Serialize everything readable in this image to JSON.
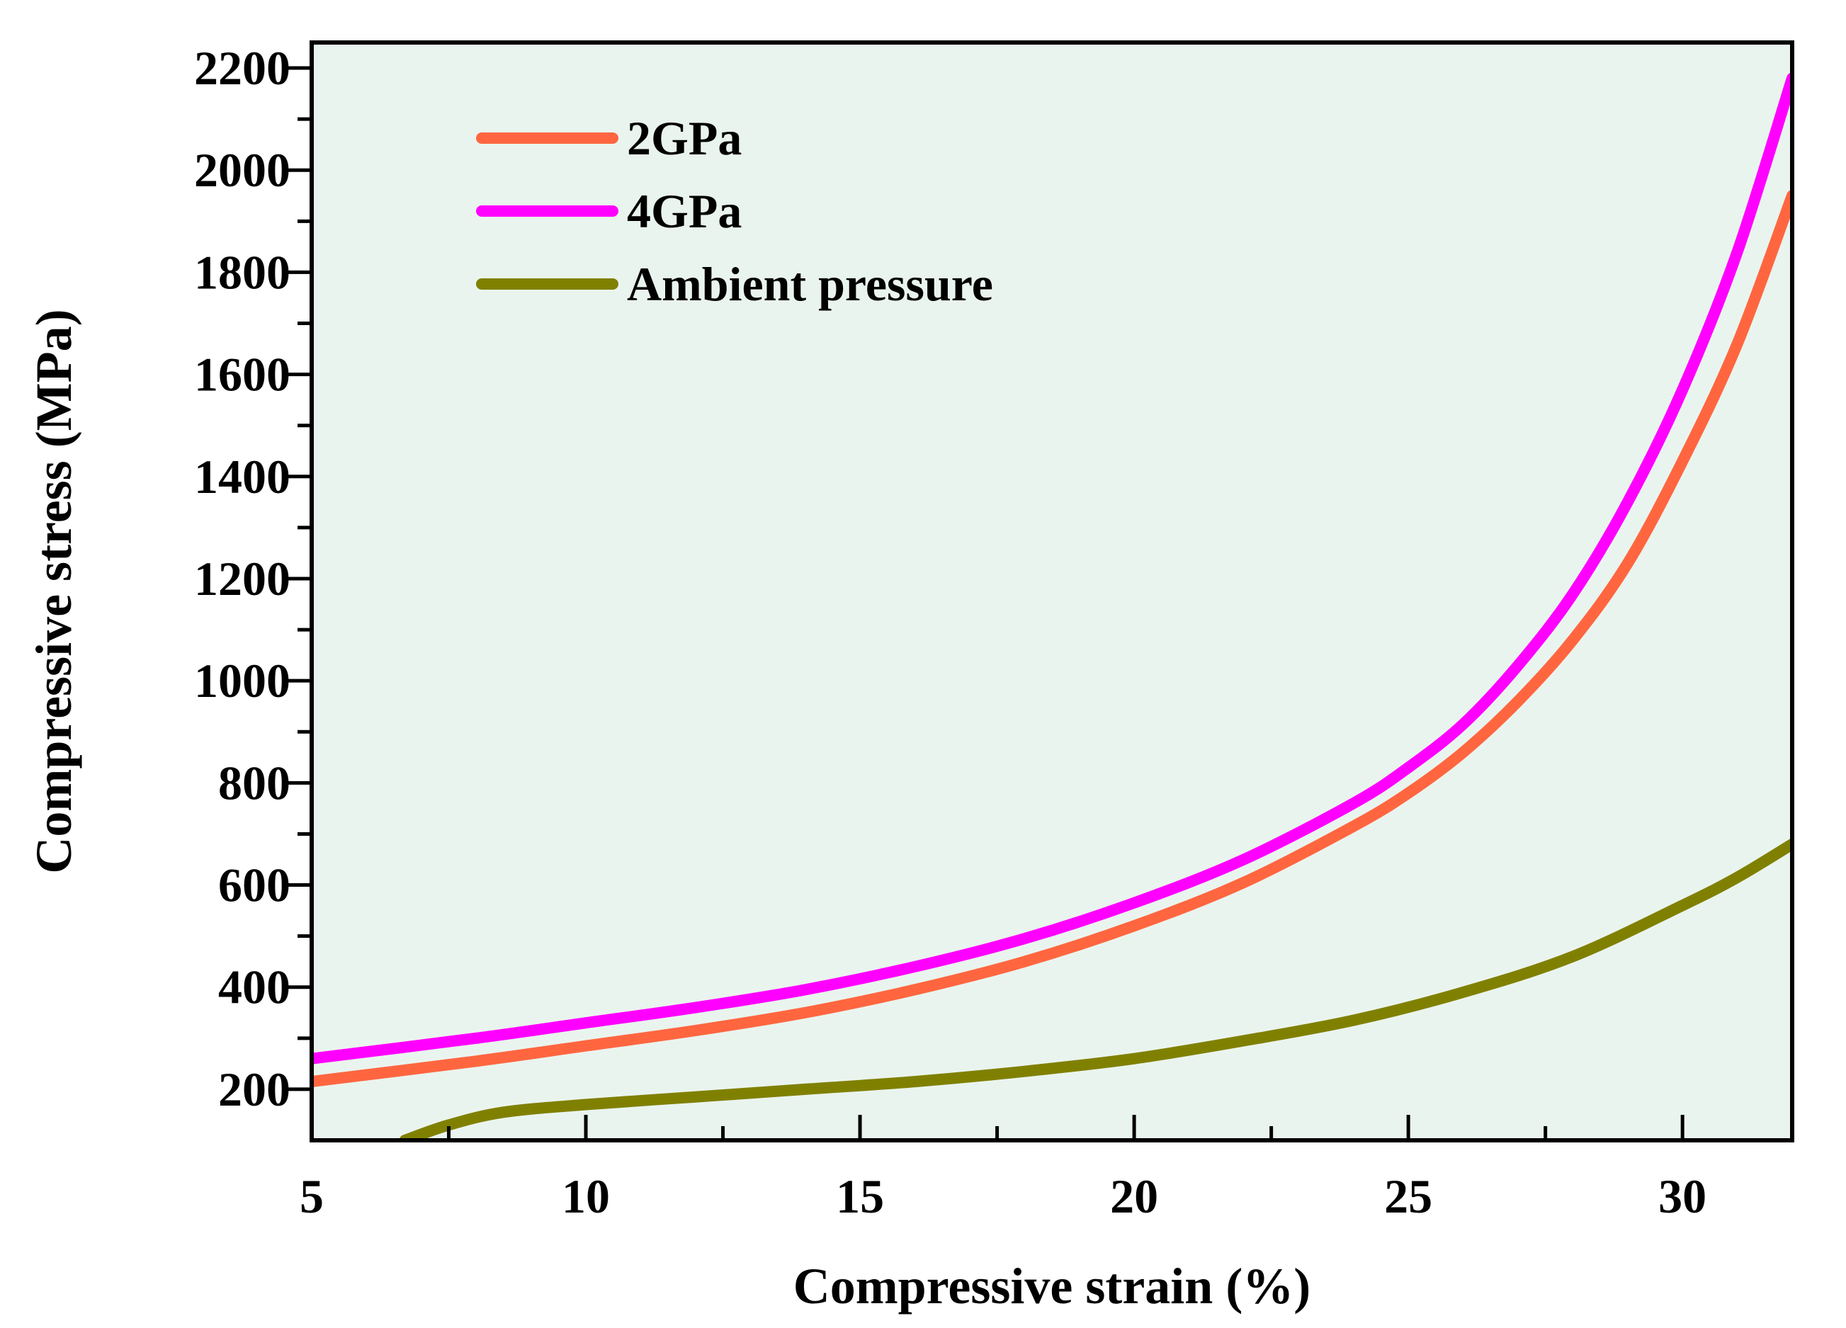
{
  "chart_data": {
    "type": "line",
    "title": "",
    "xlabel": "Compressive strain (%)",
    "ylabel": "Compressive stress (MPa)",
    "xlim": [
      5,
      32
    ],
    "ylim": [
      100,
      2250
    ],
    "x_ticks": [
      5,
      10,
      15,
      20,
      25,
      30
    ],
    "x_tick_labels": [
      "5",
      "10",
      "15",
      "20",
      "25",
      "30"
    ],
    "y_ticks": [
      200,
      400,
      600,
      800,
      1000,
      1200,
      1400,
      1600,
      1800,
      2000,
      2200
    ],
    "y_tick_labels": [
      "200",
      "400",
      "600",
      "800",
      "1000",
      "1200",
      "1400",
      "1600",
      "1800",
      "2000",
      "2200"
    ],
    "legend_position": "top-left",
    "background_color": "#EAF4EE",
    "series": [
      {
        "name": "2GPa",
        "color": "#FF6640",
        "x": [
          5,
          8,
          10,
          12,
          14,
          16,
          18,
          20,
          22,
          24,
          25,
          26,
          27,
          28,
          29,
          30,
          31,
          32
        ],
        "y": [
          215,
          255,
          285,
          315,
          350,
          395,
          450,
          520,
          605,
          715,
          780,
          860,
          960,
          1080,
          1230,
          1430,
          1660,
          1950
        ]
      },
      {
        "name": "4GPa",
        "color": "#FF00FF",
        "x": [
          5,
          8,
          10,
          12,
          14,
          16,
          18,
          20,
          22,
          24,
          25,
          26,
          27,
          28,
          29,
          30,
          31,
          32
        ],
        "y": [
          260,
          300,
          330,
          360,
          395,
          440,
          495,
          565,
          650,
          760,
          830,
          915,
          1030,
          1170,
          1350,
          1570,
          1840,
          2180
        ]
      },
      {
        "name": "Ambient pressure",
        "color": "#808000",
        "x": [
          6.7,
          7.5,
          8.5,
          10,
          12,
          14,
          16,
          18,
          20,
          22,
          24,
          26,
          28,
          30,
          31,
          32
        ],
        "y": [
          100,
          130,
          155,
          170,
          185,
          200,
          215,
          235,
          260,
          295,
          335,
          390,
          460,
          560,
          615,
          680
        ]
      }
    ]
  }
}
